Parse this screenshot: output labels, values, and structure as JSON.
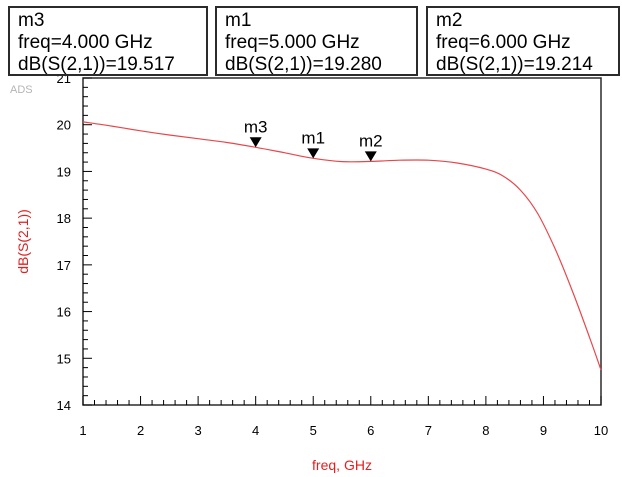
{
  "watermark": "ADS",
  "markers": [
    {
      "id": "m3",
      "freq": "freq=4.000 GHz",
      "value": "dB(S(2,1))=19.517"
    },
    {
      "id": "m1",
      "freq": "freq=5.000 GHz",
      "value": "dB(S(2,1))=19.280"
    },
    {
      "id": "m2",
      "freq": "freq=6.000 GHz",
      "value": "dB(S(2,1))=19.214"
    }
  ],
  "colors": {
    "trace": "#e8474a",
    "axis_label": "#e41e1e",
    "frame": "#2b2b2b",
    "tick": "#000000"
  },
  "chart_data": {
    "type": "line",
    "xlabel": "freq, GHz",
    "ylabel": "dB(S(2,1))",
    "xlim": [
      1,
      10
    ],
    "ylim": [
      14,
      21
    ],
    "xticks": [
      1,
      2,
      3,
      4,
      5,
      6,
      7,
      8,
      9,
      10
    ],
    "yticks": [
      14,
      15,
      16,
      17,
      18,
      19,
      20,
      21
    ],
    "grid": false,
    "series": [
      {
        "name": "dB(S(2,1))",
        "x": [
          1.0,
          1.5,
          2.0,
          2.5,
          3.0,
          3.5,
          4.0,
          4.5,
          5.0,
          5.5,
          6.0,
          6.5,
          7.0,
          7.5,
          8.0,
          8.3,
          8.6,
          8.9,
          9.2,
          9.5,
          9.8,
          10.0
        ],
        "y": [
          20.06,
          19.97,
          19.87,
          19.78,
          19.7,
          19.62,
          19.517,
          19.4,
          19.28,
          19.21,
          19.214,
          19.24,
          19.24,
          19.18,
          19.05,
          18.9,
          18.6,
          18.1,
          17.35,
          16.45,
          15.45,
          14.75
        ]
      }
    ],
    "markers": [
      {
        "label": "m3",
        "x": 4.0,
        "y": 19.517
      },
      {
        "label": "m1",
        "x": 5.0,
        "y": 19.28
      },
      {
        "label": "m2",
        "x": 6.0,
        "y": 19.214
      }
    ]
  }
}
